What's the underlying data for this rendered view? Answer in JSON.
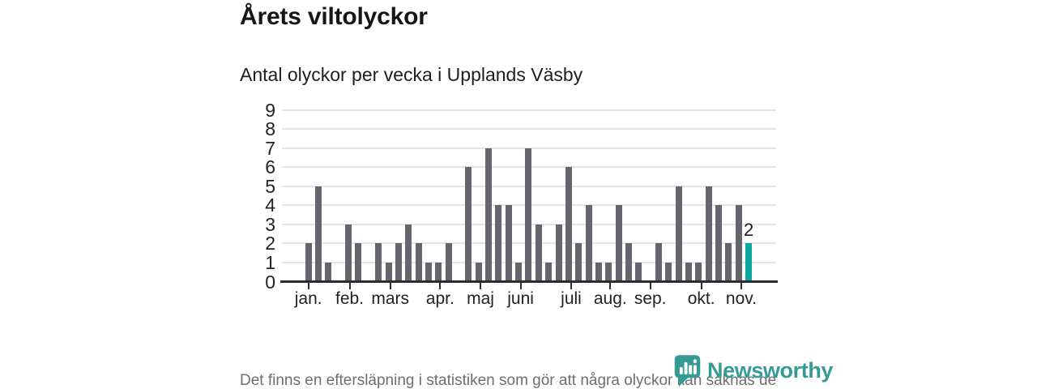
{
  "title": "Årets viltolyckor",
  "subtitle": "Antal olyckor per vecka i Upplands Väsby",
  "footnote": "Det finns en eftersläpning i statistiken som gör att några olyckor kan saknas de senaste veckorna.",
  "logo": {
    "name": "Newsworthy"
  },
  "colors": {
    "bar": "#65656d",
    "highlight": "#0aa6a0",
    "axis": "#2d2d2d",
    "grid": "#e5e5e5",
    "text": "#222222",
    "muted": "#6e6e6e",
    "logo": "#359c95"
  },
  "chart_data": {
    "type": "bar",
    "title": "Årets viltolyckor",
    "subtitle": "Antal olyckor per vecka i Upplands Väsby",
    "xlabel": "vecka",
    "ylabel": "Antal olyckor",
    "ylim": [
      0,
      9
    ],
    "yticks": [
      0,
      1,
      2,
      3,
      4,
      5,
      6,
      7,
      8,
      9
    ],
    "grid": "horizontal",
    "weekly_values": [
      2,
      5,
      1,
      0,
      3,
      2,
      0,
      2,
      1,
      2,
      3,
      2,
      1,
      1,
      2,
      0,
      6,
      1,
      7,
      4,
      4,
      1,
      7,
      3,
      1,
      3,
      6,
      2,
      4,
      1,
      1,
      4,
      2,
      1,
      0,
      2,
      1,
      5,
      1,
      1,
      5,
      4,
      2,
      4,
      2
    ],
    "highlight_last_bar": true,
    "annotation": {
      "week_index": 44,
      "text": "2"
    },
    "month_ticks": [
      {
        "label": "jan.",
        "week": 0.0
      },
      {
        "label": "feb.",
        "week": 4.11
      },
      {
        "label": "mars",
        "week": 8.18
      },
      {
        "label": "apr.",
        "week": 13.17
      },
      {
        "label": "maj",
        "week": 17.19
      },
      {
        "label": "juni",
        "week": 21.21
      },
      {
        "label": "juli",
        "week": 26.26
      },
      {
        "label": "aug.",
        "week": 30.17
      },
      {
        "label": "sep.",
        "week": 34.17
      },
      {
        "label": "okt.",
        "week": 39.27
      },
      {
        "label": "nov.",
        "week": 43.26
      }
    ]
  }
}
